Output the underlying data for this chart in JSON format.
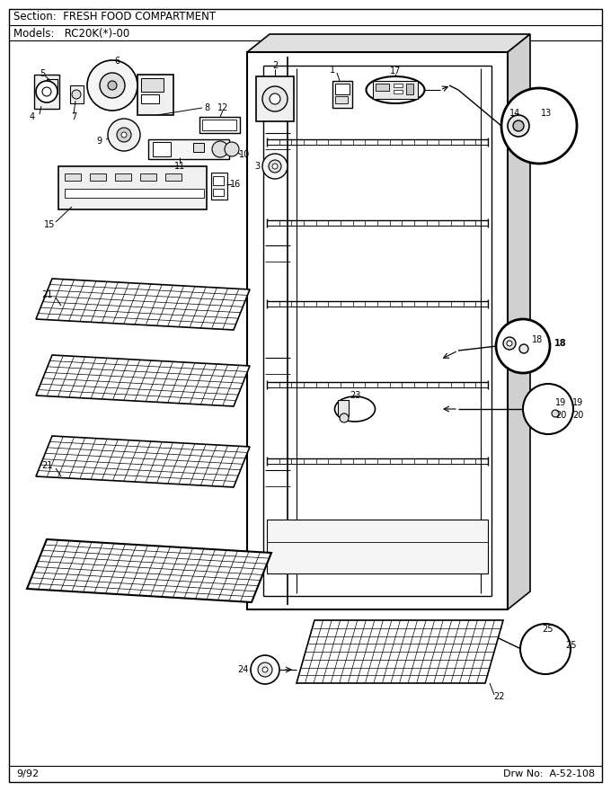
{
  "title_section": "Section:  FRESH FOOD COMPARTMENT",
  "title_models": "Models:   RC20K(*)-00",
  "footer_left": "9/92",
  "footer_right": "Drw No:  A-52-108",
  "bg_color": "#ffffff",
  "fig_width": 6.8,
  "fig_height": 8.9,
  "dpi": 100
}
